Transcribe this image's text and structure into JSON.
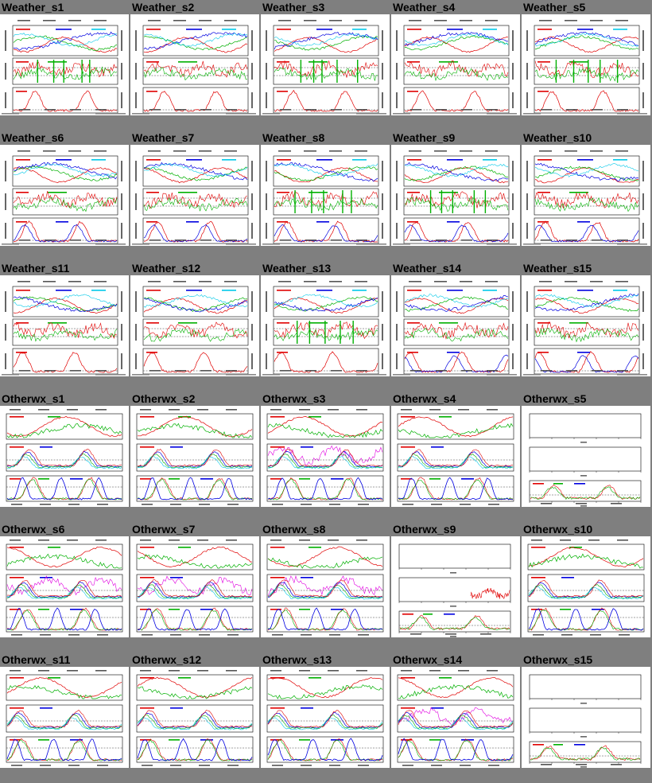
{
  "page": {
    "background": "#7f7f7f"
  },
  "rows": [
    {
      "cells": [
        {
          "label": "Weather_s1",
          "kind": "weather",
          "variant": 1,
          "interactable": true
        },
        {
          "label": "Weather_s2",
          "kind": "weather",
          "variant": 2,
          "interactable": true
        },
        {
          "label": "Weather_s3",
          "kind": "weather",
          "variant": 3,
          "interactable": true
        },
        {
          "label": "Weather_s4",
          "kind": "weather",
          "variant": 4,
          "interactable": true
        },
        {
          "label": "Weather_s5",
          "kind": "weather",
          "variant": 5,
          "interactable": true
        }
      ]
    },
    {
      "cells": [
        {
          "label": "Weather_s6",
          "kind": "weather",
          "variant": 6,
          "interactable": true
        },
        {
          "label": "Weather_s7",
          "kind": "weather",
          "variant": 7,
          "interactable": true
        },
        {
          "label": "Weather_s8",
          "kind": "weather",
          "variant": 8,
          "interactable": true
        },
        {
          "label": "Weather_s9",
          "kind": "weather",
          "variant": 9,
          "interactable": true
        },
        {
          "label": "Weather_s10",
          "kind": "weather",
          "variant": 10,
          "interactable": true
        }
      ]
    },
    {
      "cells": [
        {
          "label": "Weather_s11",
          "kind": "weather",
          "variant": 11,
          "interactable": true
        },
        {
          "label": "Weather_s12",
          "kind": "weather",
          "variant": 12,
          "interactable": true
        },
        {
          "label": "Weather_s13",
          "kind": "weather",
          "variant": 13,
          "interactable": true
        },
        {
          "label": "Weather_s14",
          "kind": "weather",
          "variant": 14,
          "interactable": true
        },
        {
          "label": "Weather_s15",
          "kind": "weather",
          "variant": 15,
          "interactable": true
        }
      ]
    },
    {
      "cells": [
        {
          "label": "Otherwx_s1",
          "kind": "otherwx",
          "variant": 1,
          "interactable": true
        },
        {
          "label": "Otherwx_s2",
          "kind": "otherwx",
          "variant": 2,
          "interactable": true
        },
        {
          "label": "Otherwx_s3",
          "kind": "otherwx",
          "variant": 3,
          "interactable": true
        },
        {
          "label": "Otherwx_s4",
          "kind": "otherwx",
          "variant": 4,
          "interactable": true
        },
        {
          "label": "Otherwx_s5",
          "kind": "otherwx-empty",
          "variant": 5,
          "interactable": true
        }
      ]
    },
    {
      "cells": [
        {
          "label": "Otherwx_s6",
          "kind": "otherwx",
          "variant": 6,
          "interactable": true
        },
        {
          "label": "Otherwx_s7",
          "kind": "otherwx",
          "variant": 7,
          "interactable": true
        },
        {
          "label": "Otherwx_s8",
          "kind": "otherwx",
          "variant": 8,
          "interactable": true
        },
        {
          "label": "Otherwx_s9",
          "kind": "otherwx-empty",
          "variant": 9,
          "interactable": true
        },
        {
          "label": "Otherwx_s10",
          "kind": "otherwx",
          "variant": 10,
          "interactable": true
        }
      ]
    },
    {
      "cells": [
        {
          "label": "Otherwx_s11",
          "kind": "otherwx",
          "variant": 11,
          "interactable": true
        },
        {
          "label": "Otherwx_s12",
          "kind": "otherwx",
          "variant": 12,
          "interactable": true
        },
        {
          "label": "Otherwx_s13",
          "kind": "otherwx",
          "variant": 13,
          "interactable": true
        },
        {
          "label": "Otherwx_s14",
          "kind": "otherwx",
          "variant": 14,
          "interactable": true
        },
        {
          "label": "Otherwx_s15",
          "kind": "otherwx-empty",
          "variant": 15,
          "interactable": true
        }
      ]
    }
  ],
  "colors": {
    "red": "#e00000",
    "green": "#00b000",
    "blue": "#0000e0",
    "cyan": "#00c8e8",
    "magenta": "#e000e0",
    "frame": "#000000",
    "dashed": "#404040"
  }
}
